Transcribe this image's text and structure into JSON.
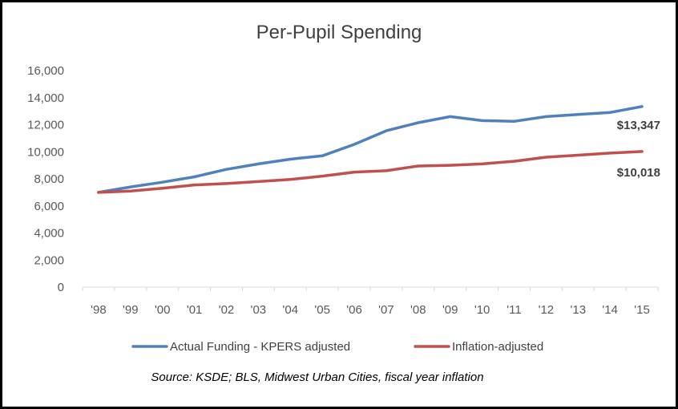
{
  "chart_data": {
    "type": "line",
    "title": "Per-Pupil Spending",
    "xlabel": "",
    "ylabel": "",
    "categories": [
      "'98",
      "'99",
      "'00",
      "'01",
      "'02",
      "'03",
      "'04",
      "'05",
      "'06",
      "'07",
      "'08",
      "'09",
      "'10",
      "'11",
      "'12",
      "'13",
      "'14",
      "'15"
    ],
    "ylim": [
      0,
      16000
    ],
    "yticks": [
      0,
      2000,
      4000,
      6000,
      8000,
      10000,
      12000,
      14000,
      16000
    ],
    "ytick_labels": [
      "0",
      "2,000",
      "4,000",
      "6,000",
      "8,000",
      "10,000",
      "12,000",
      "14,000",
      "16,000"
    ],
    "grid": false,
    "legend_position": "bottom",
    "series": [
      {
        "name": "Actual Funding - KPERS adjusted",
        "color": "#4f81bd",
        "values": [
          7000,
          7400,
          7750,
          8150,
          8700,
          9100,
          9450,
          9700,
          10550,
          11550,
          12150,
          12600,
          12300,
          12250,
          12600,
          12750,
          12900,
          13347
        ],
        "end_label": "$13,347"
      },
      {
        "name": "Inflation-adjusted",
        "color": "#c0504d",
        "values": [
          7000,
          7100,
          7300,
          7550,
          7650,
          7800,
          7950,
          8200,
          8500,
          8600,
          8950,
          9000,
          9100,
          9300,
          9600,
          9750,
          9900,
          10018
        ],
        "end_label": "$10,018"
      }
    ],
    "source_note": "Source: KSDE; BLS, Midwest Urban Cities, fiscal year inflation"
  }
}
